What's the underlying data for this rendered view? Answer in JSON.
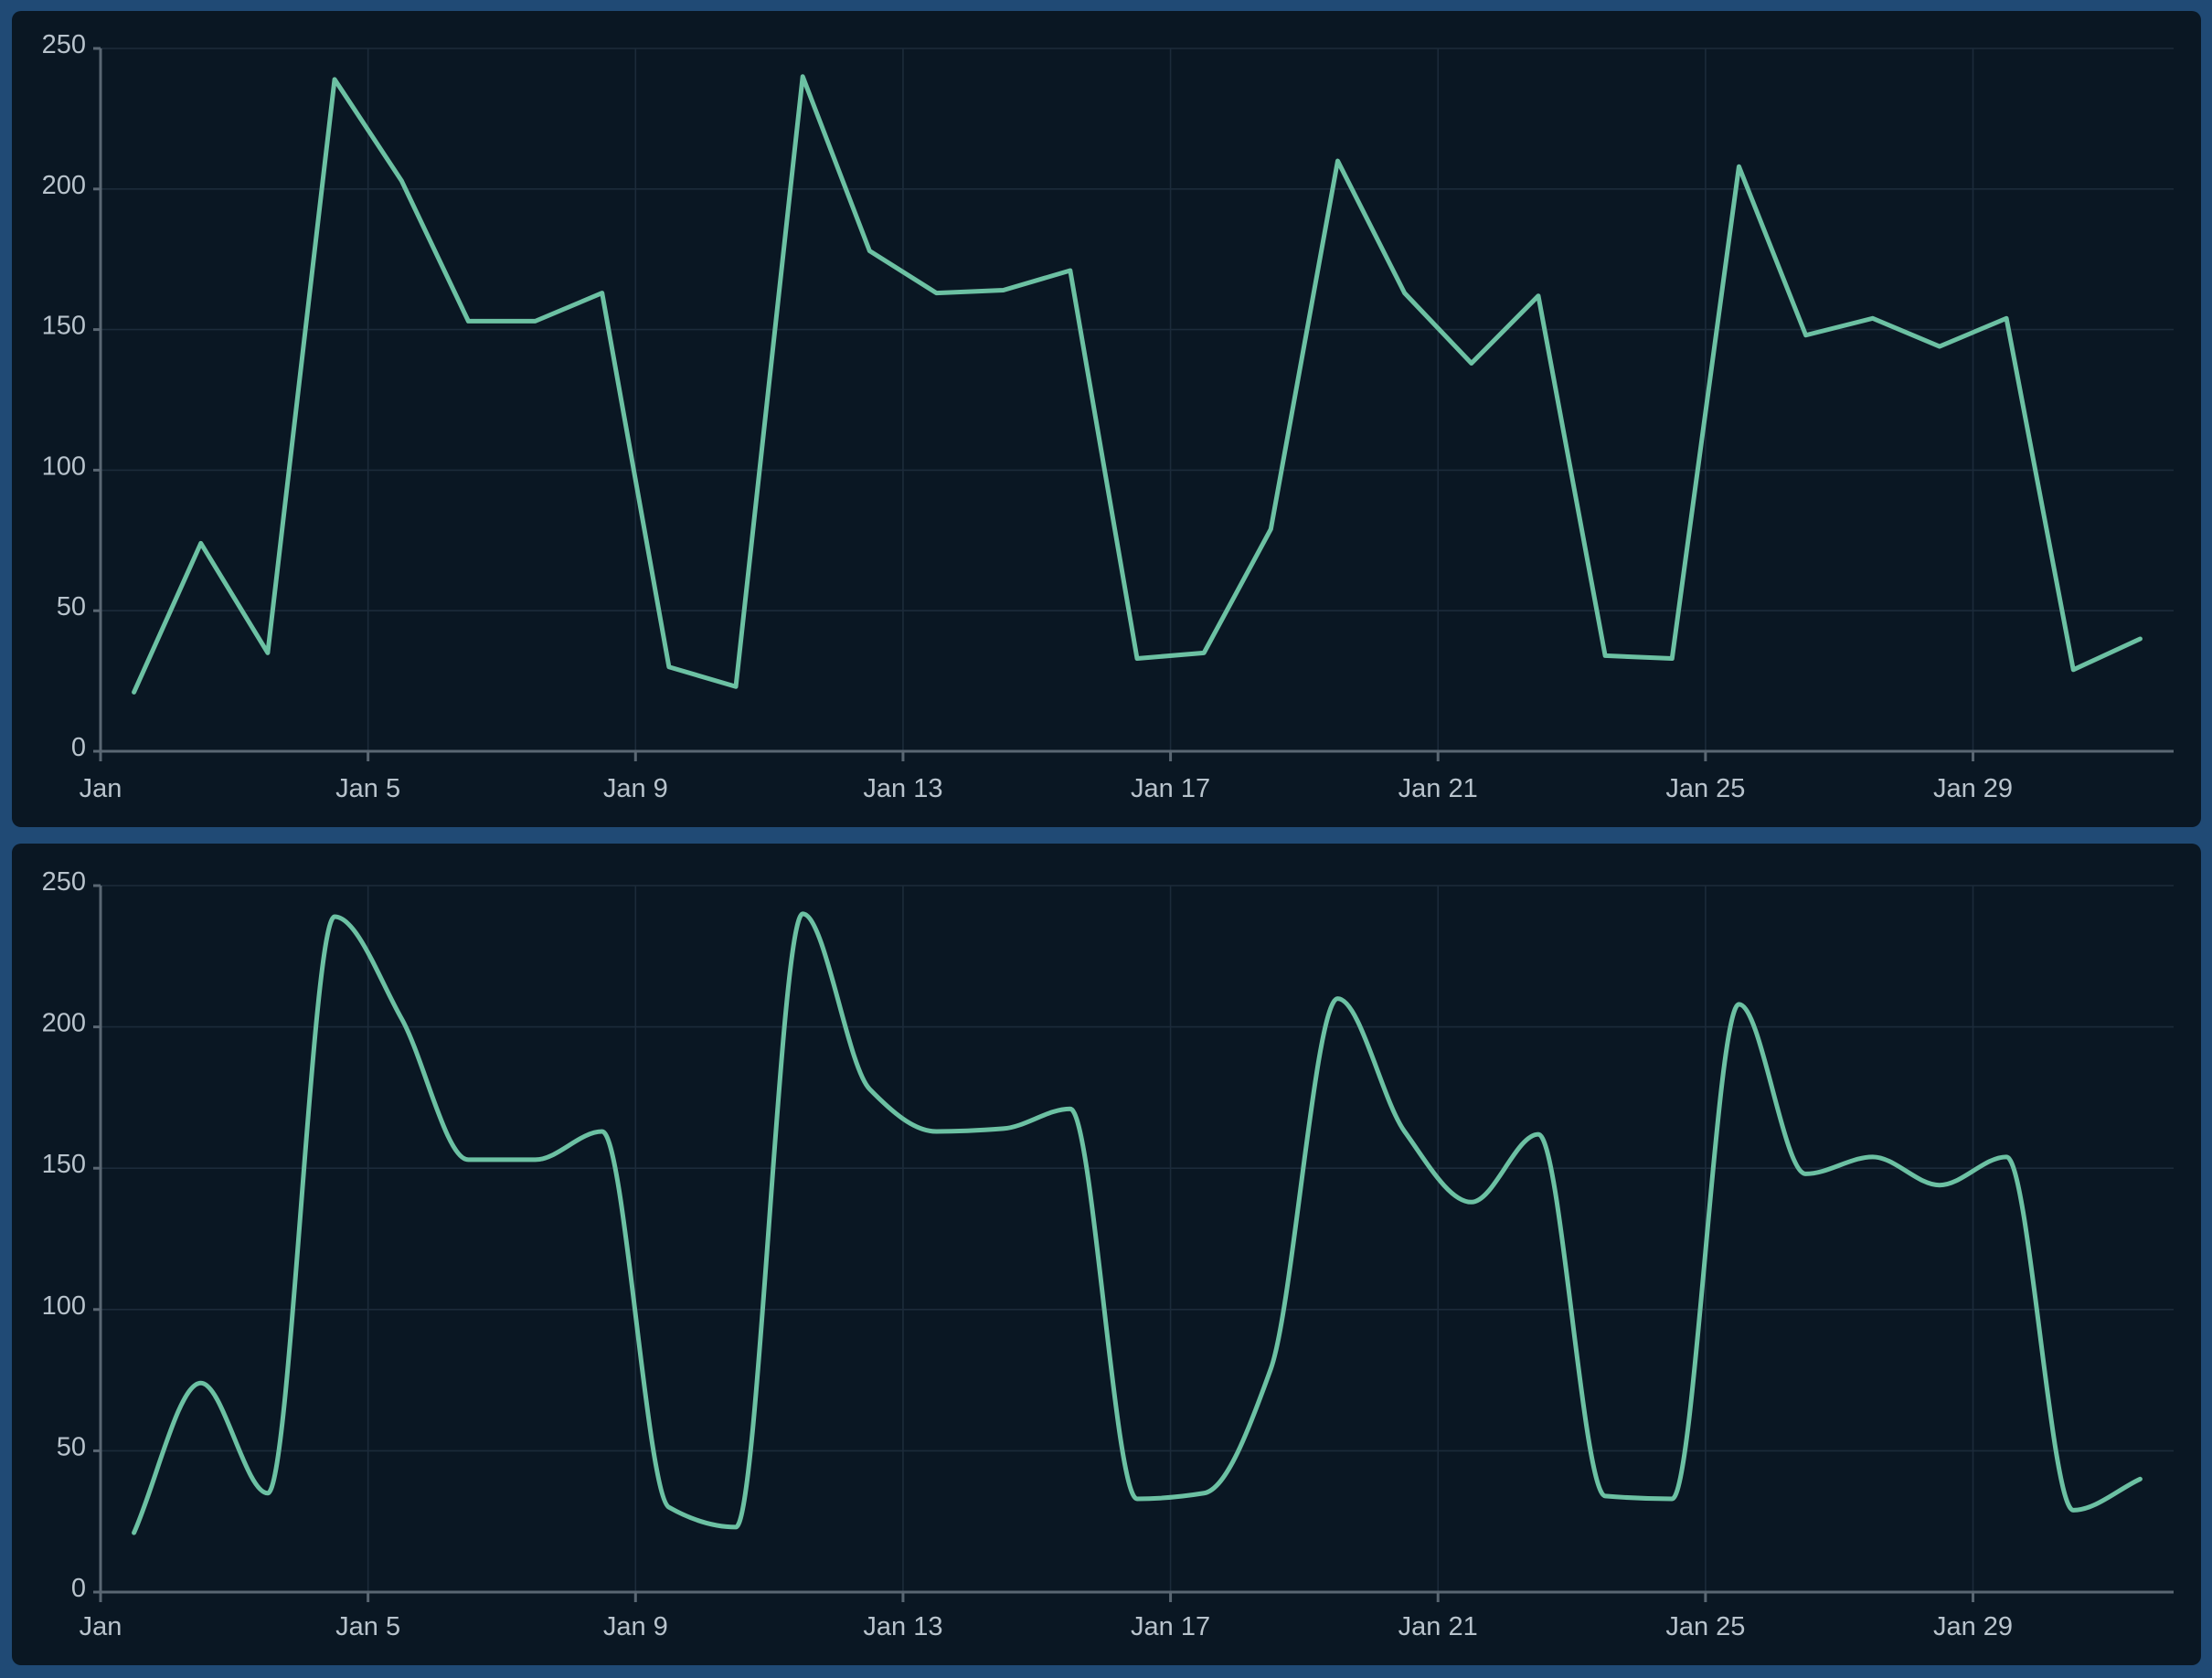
{
  "page": {
    "background_color": "#204a75"
  },
  "style": {
    "panel_background": "#0a1723",
    "grid_color": "#1c2b3a",
    "axis_color": "#5a6773",
    "tick_label_color": "#b8c3cc",
    "series_color": "#6cc1a3",
    "series_stroke_width": 5
  },
  "chart_data": [
    {
      "type": "line",
      "name": "daily-series-linear",
      "title": "",
      "smooth": false,
      "x": [
        "Jan 1",
        "Jan 2",
        "Jan 3",
        "Jan 4",
        "Jan 5",
        "Jan 6",
        "Jan 7",
        "Jan 8",
        "Jan 9",
        "Jan 10",
        "Jan 11",
        "Jan 12",
        "Jan 13",
        "Jan 14",
        "Jan 15",
        "Jan 16",
        "Jan 17",
        "Jan 18",
        "Jan 19",
        "Jan 20",
        "Jan 21",
        "Jan 22",
        "Jan 23",
        "Jan 24",
        "Jan 25",
        "Jan 26",
        "Jan 27",
        "Jan 28",
        "Jan 29",
        "Jan 30",
        "Jan 31"
      ],
      "values": [
        21,
        74,
        35,
        239,
        203,
        153,
        153,
        163,
        30,
        23,
        240,
        178,
        163,
        164,
        171,
        33,
        35,
        79,
        210,
        163,
        138,
        162,
        34,
        33,
        208,
        148,
        154,
        144,
        154,
        29,
        40
      ],
      "x_tick_labels": [
        "Jan",
        "Jan 5",
        "Jan 9",
        "Jan 13",
        "Jan 17",
        "Jan 21",
        "Jan 25",
        "Jan 29"
      ],
      "x_tick_indices": [
        0,
        4,
        8,
        12,
        16,
        20,
        24,
        28
      ],
      "y_ticks": [
        0,
        50,
        100,
        150,
        200,
        250
      ],
      "ylim": [
        0,
        250
      ],
      "grid": true,
      "legend_position": "none"
    },
    {
      "type": "line",
      "name": "daily-series-smooth",
      "title": "",
      "smooth": true,
      "x": [
        "Jan 1",
        "Jan 2",
        "Jan 3",
        "Jan 4",
        "Jan 5",
        "Jan 6",
        "Jan 7",
        "Jan 8",
        "Jan 9",
        "Jan 10",
        "Jan 11",
        "Jan 12",
        "Jan 13",
        "Jan 14",
        "Jan 15",
        "Jan 16",
        "Jan 17",
        "Jan 18",
        "Jan 19",
        "Jan 20",
        "Jan 21",
        "Jan 22",
        "Jan 23",
        "Jan 24",
        "Jan 25",
        "Jan 26",
        "Jan 27",
        "Jan 28",
        "Jan 29",
        "Jan 30",
        "Jan 31"
      ],
      "values": [
        21,
        74,
        35,
        239,
        203,
        153,
        153,
        163,
        30,
        23,
        240,
        178,
        163,
        164,
        171,
        33,
        35,
        79,
        210,
        163,
        138,
        162,
        34,
        33,
        208,
        148,
        154,
        144,
        154,
        29,
        40
      ],
      "x_tick_labels": [
        "Jan",
        "Jan 5",
        "Jan 9",
        "Jan 13",
        "Jan 17",
        "Jan 21",
        "Jan 25",
        "Jan 29"
      ],
      "x_tick_indices": [
        0,
        4,
        8,
        12,
        16,
        20,
        24,
        28
      ],
      "y_ticks": [
        0,
        50,
        100,
        150,
        200,
        250
      ],
      "ylim": [
        0,
        250
      ],
      "grid": true,
      "legend_position": "none"
    }
  ]
}
